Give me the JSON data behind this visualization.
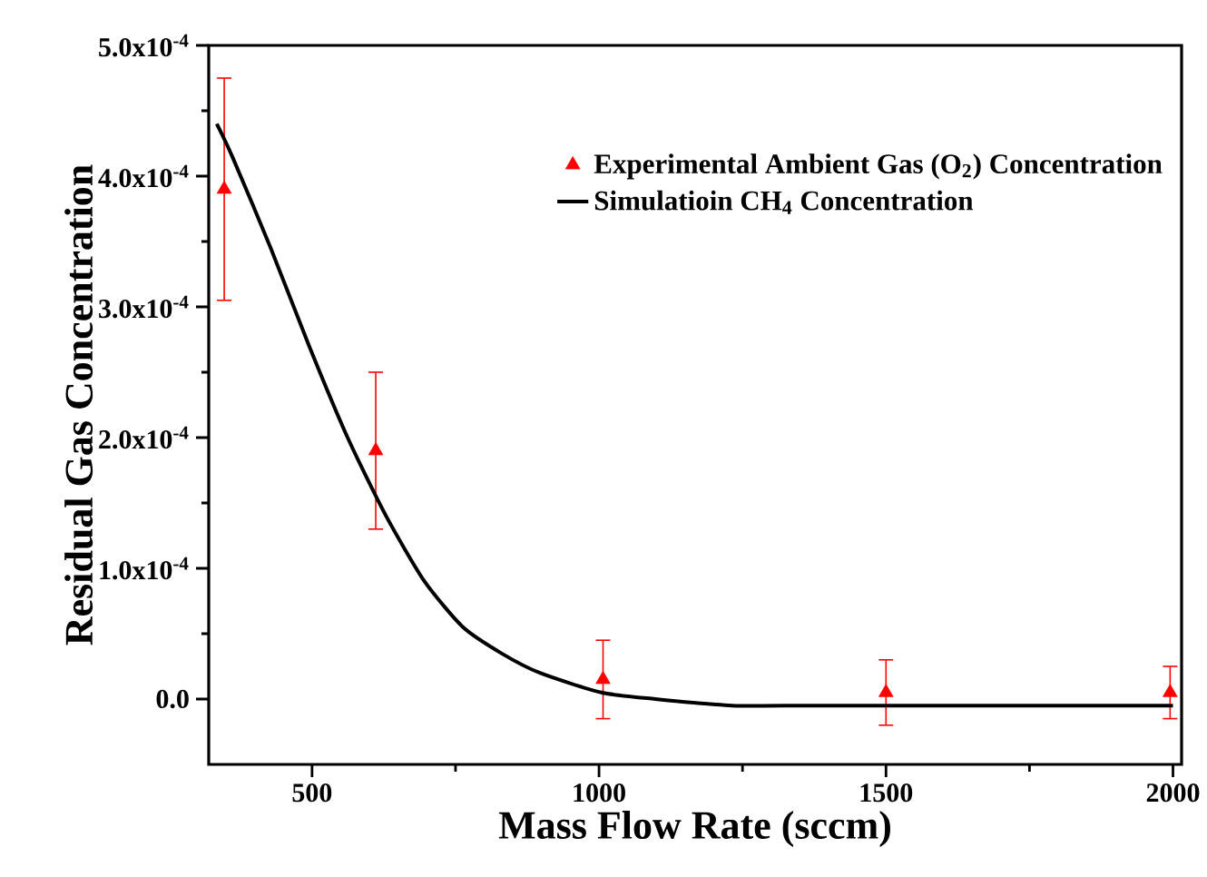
{
  "chart_data": {
    "type": "scatter",
    "xlabel": "Mass Flow Rate (sccm)",
    "ylabel": "Residual Gas Concentration",
    "xlim": [
      320,
      2015
    ],
    "ylim": [
      -5e-05,
      0.0005
    ],
    "xticks": [
      500,
      1000,
      1500,
      2000
    ],
    "yticks": [
      {
        "value": 0,
        "label": "0.0"
      },
      {
        "value": 0.0001,
        "label": "1.0x10$^{-4}$"
      },
      {
        "value": 0.0002,
        "label": "2.0x10$^{-4}$"
      },
      {
        "value": 0.0003,
        "label": "3.0x10$^{-4}$"
      },
      {
        "value": 0.0004,
        "label": "4.0x10$^{-4}$"
      },
      {
        "value": 0.0005,
        "label": "5.0x10$^{-4}$"
      }
    ],
    "legend": "top right",
    "grid": false,
    "series": [
      {
        "name": "Experimental Ambient Gas (O$_{2}$) Concentration",
        "color": "#ff0000",
        "marker": "triangle",
        "x": [
          347,
          611,
          1007,
          1500,
          1995
        ],
        "values": [
          0.00039,
          0.00019,
          1.5e-05,
          5e-06,
          5e-06
        ],
        "errors": [
          8.5e-05,
          6e-05,
          3e-05,
          2.5e-05,
          2e-05
        ]
      },
      {
        "name": "Simulatioin CH$_{4}$ Concentration",
        "type": "line",
        "color": "#000000",
        "marker": "none",
        "line_style": "solid",
        "x": [
          334,
          361,
          428,
          495,
          562,
          629,
          696,
          763,
          830,
          897,
          1004,
          1098,
          1232,
          1366,
          1567,
          2000
        ],
        "values": [
          0.00044,
          0.000415,
          0.000345,
          0.00027,
          0.0002,
          0.00014,
          9e-05,
          5.5e-05,
          3.5e-05,
          2e-05,
          5e-06,
          0.0,
          -5e-06,
          -5e-06,
          -5e-06,
          -5e-06
        ]
      }
    ]
  }
}
